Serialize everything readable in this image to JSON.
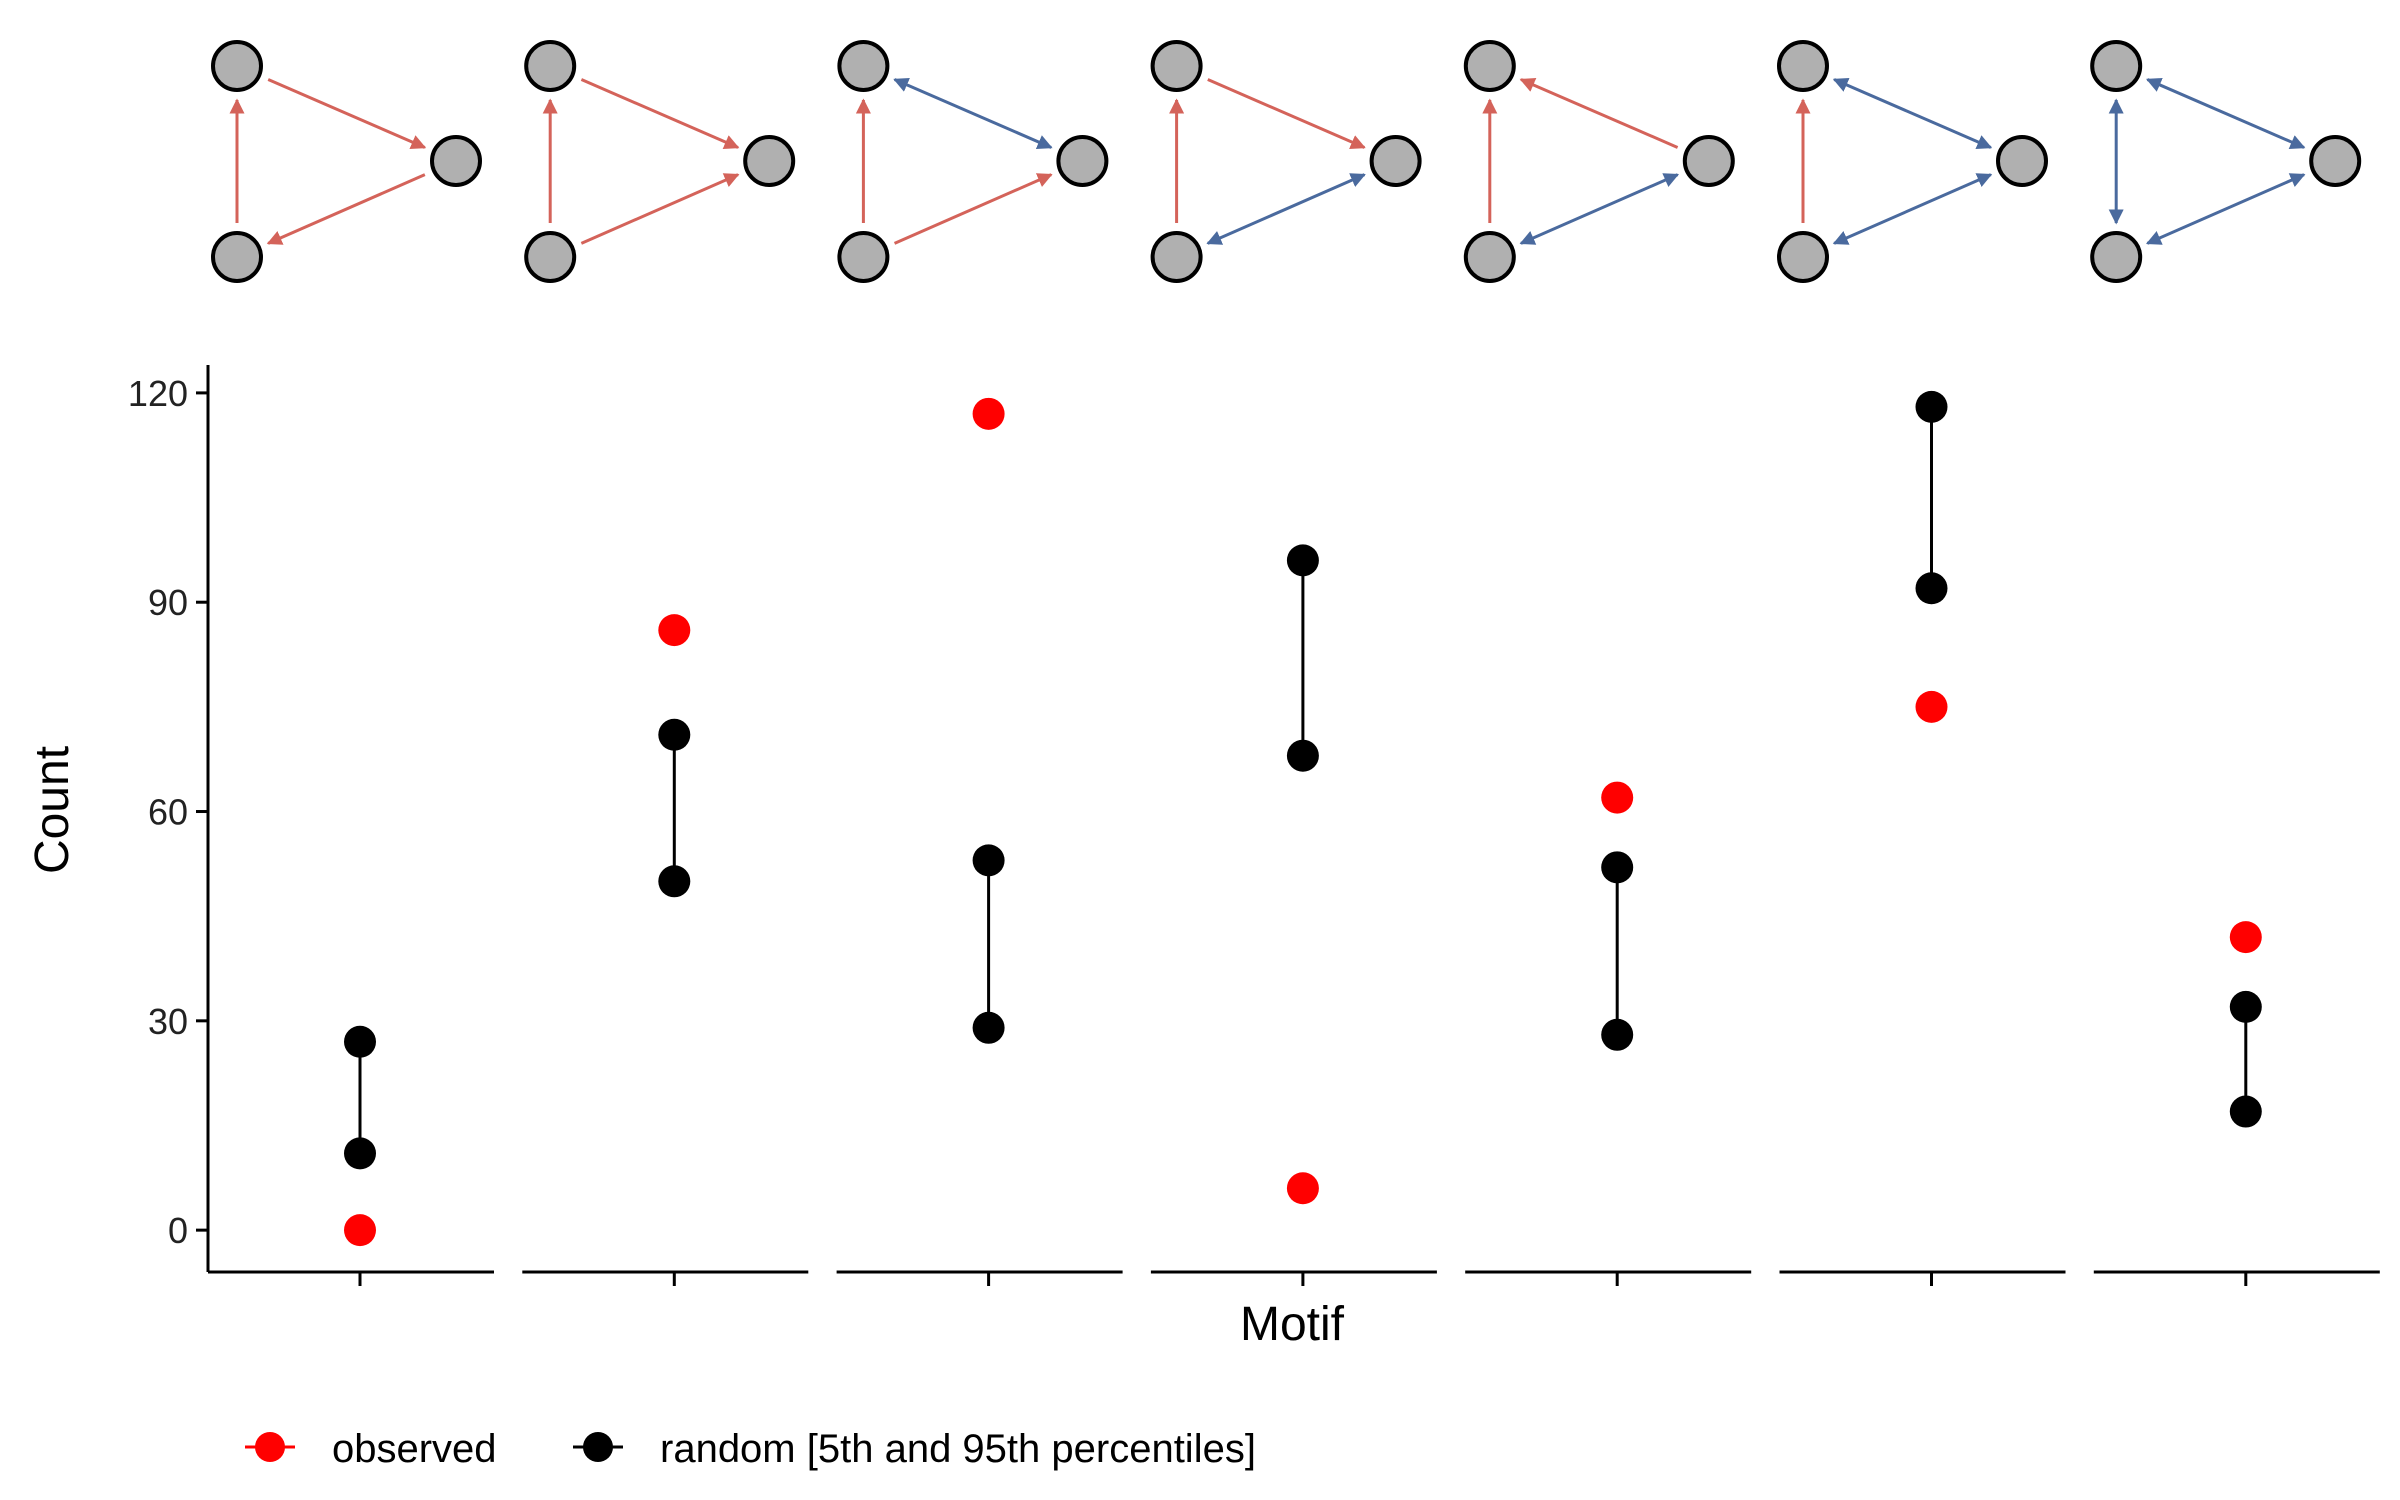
{
  "chart_data": {
    "type": "scatter",
    "title": "",
    "xlabel": "Motif",
    "ylabel": "Count",
    "ylim": [
      -6,
      124
    ],
    "yticks": [
      0,
      30,
      60,
      90,
      120
    ],
    "categories": [
      "motif-1",
      "motif-2",
      "motif-3",
      "motif-4",
      "motif-5",
      "motif-6",
      "motif-7"
    ],
    "series": [
      {
        "name": "observed",
        "color": "#ff0000",
        "values": [
          0,
          86,
          117,
          6,
          62,
          75,
          42
        ]
      },
      {
        "name": "random [5th and 95th percentiles]",
        "color": "#000000",
        "low": [
          11,
          50,
          29,
          68,
          28,
          92,
          17
        ],
        "high": [
          27,
          71,
          53,
          96,
          52,
          118,
          32
        ]
      }
    ],
    "grid": false,
    "legend_position": "bottom-left",
    "motif_edges": [
      [
        [
          "a",
          "b",
          "single"
        ],
        [
          "b",
          "c",
          "single"
        ],
        [
          "c",
          "a",
          "single"
        ]
      ],
      [
        [
          "c",
          "a",
          "single"
        ],
        [
          "a",
          "b",
          "single"
        ],
        [
          "c",
          "b",
          "single"
        ]
      ],
      [
        [
          "c",
          "a",
          "single"
        ],
        [
          "c",
          "b",
          "single"
        ],
        [
          "a",
          "b",
          "double"
        ]
      ],
      [
        [
          "c",
          "a",
          "single"
        ],
        [
          "a",
          "b",
          "single"
        ],
        [
          "b",
          "c",
          "double"
        ]
      ],
      [
        [
          "c",
          "a",
          "single"
        ],
        [
          "b",
          "a",
          "single"
        ],
        [
          "b",
          "c",
          "double"
        ]
      ],
      [
        [
          "c",
          "a",
          "single"
        ],
        [
          "a",
          "b",
          "double"
        ],
        [
          "b",
          "c",
          "double"
        ]
      ],
      [
        [
          "a",
          "c",
          "double"
        ],
        [
          "a",
          "b",
          "double"
        ],
        [
          "b",
          "c",
          "double"
        ]
      ]
    ],
    "colors": {
      "single_edge": "#d4635a",
      "double_edge": "#4a6a9e",
      "node_fill": "#b0b0b0",
      "node_stroke": "#000000"
    }
  }
}
